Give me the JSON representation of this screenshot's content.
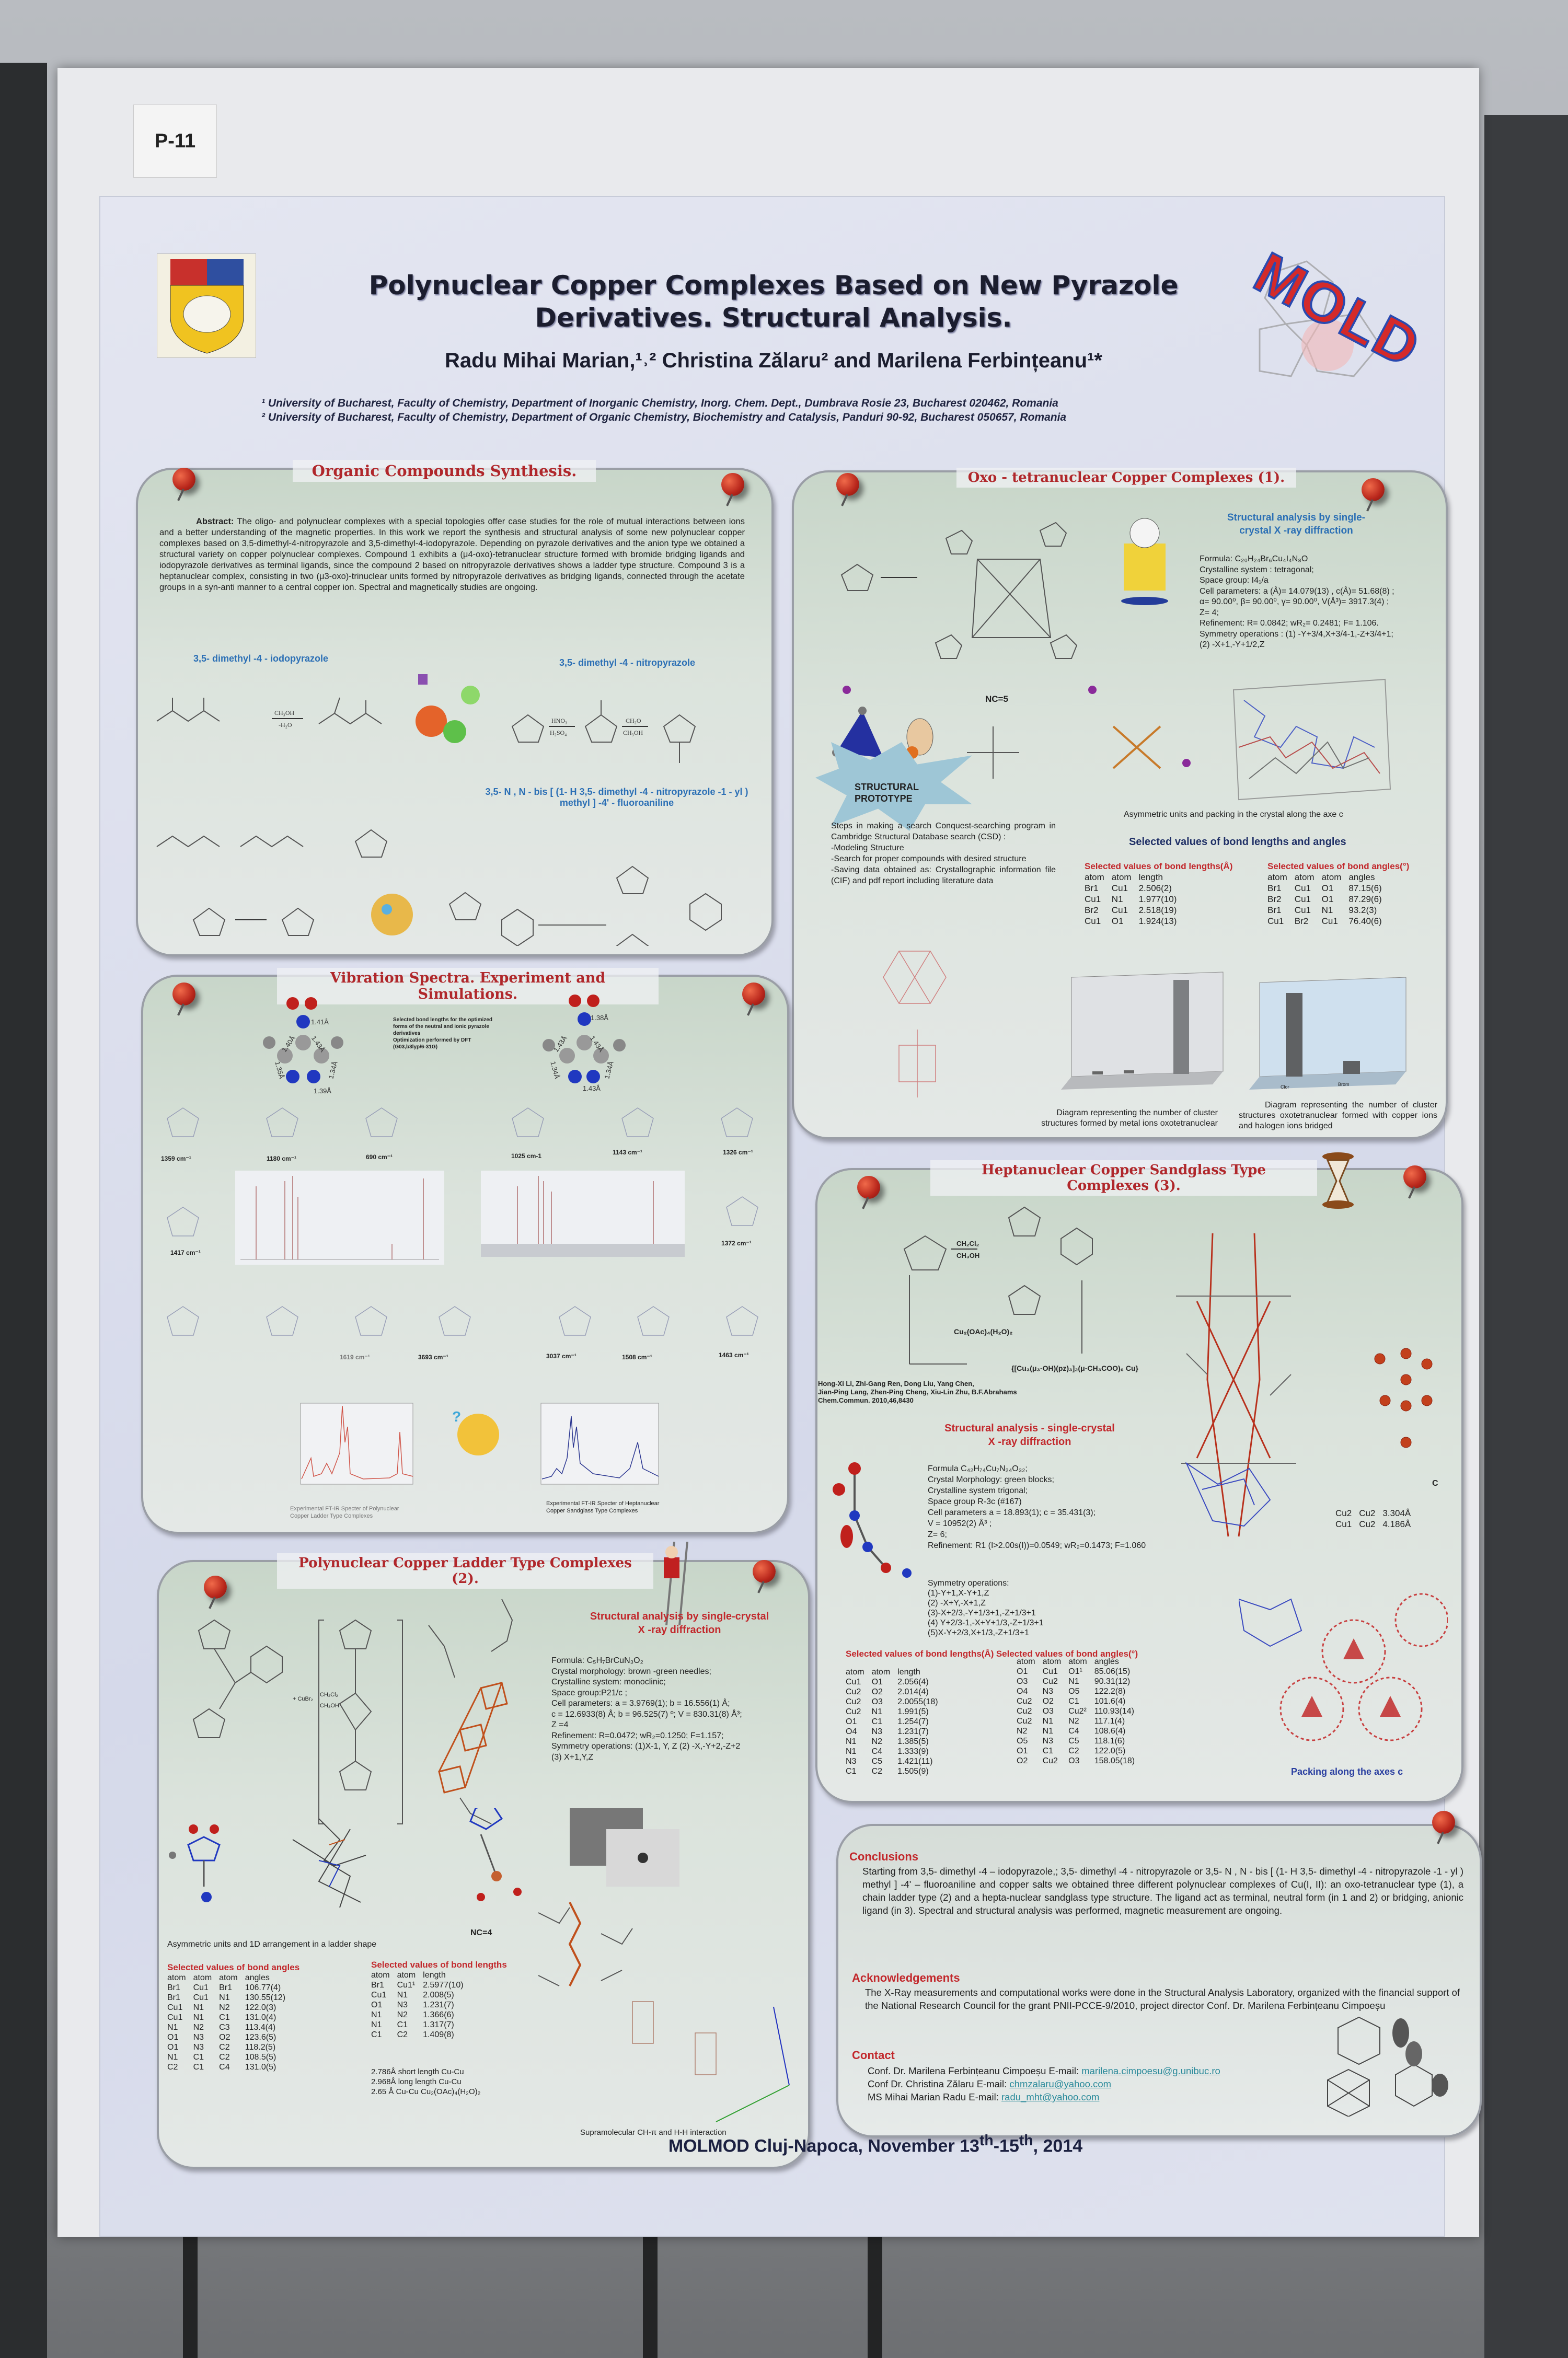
{
  "tag": "P-11",
  "header": {
    "title_line1": "Polynuclear Copper Complexes Based on New Pyrazole",
    "title_line2": "Derivatives. Structural Analysis.",
    "authors": "Radu Mihai Marian,¹˒² Christina Zălaru² and Marilena Ferbințeanu¹*",
    "affiliation1": "¹ University of Bucharest, Faculty of Chemistry, Department of Inorganic Chemistry, Inorg. Chem. Dept., Dumbrava Rosie 23, Bucharest 020462, Romania",
    "affiliation2": "² University of Bucharest, Faculty of Chemistry, Department of Organic Chemistry, Biochemistry and Catalysis, Panduri 90-92, Bucharest 050657, Romania",
    "logo_text": "MOLD"
  },
  "organic": {
    "title": "Organic Compounds Synthesis.",
    "abstract_label": "Abstract:",
    "abstract": "The oligo- and polynuclear complexes with a special topologies offer case studies for the role of mutual interactions between ions and a better understanding of the magnetic properties. In this work we report the synthesis and structural analysis of some new polynuclear copper complexes based on 3,5-dimethyl-4-nitropyrazole and 3,5-dimethyl-4-iodopyrazole. Depending on pyrazole derivatives and the anion type we obtained a structural variety on copper polynuclear complexes. Compound 1 exhibits a (μ4-oxo)-tetranuclear structure formed with bromide bridging ligands and iodopyrazole derivatives as terminal ligands, since the compound 2 based on nitropyrazole derivatives shows a ladder type structure. Compound 3 is a heptanuclear complex, consisting in two (μ3-oxo)-trinuclear units formed by nitropyrazole derivatives as bridging ligands, connected through the acetate groups in a syn-anti manner to a central copper ion. Spectral and magnetically studies are ongoing.",
    "label_iodo": "3,5- dimethyl -4 - iodopyrazole",
    "label_nitro": "3,5- dimethyl -4 - nitropyrazole",
    "label_bis": "3,5- N , N - bis [ (1- H 3,5- dimethyl -4 - nitropyrazole -1 - yl ) methyl ] -4' - fluoroaniline",
    "reagents": [
      "CH₃OH",
      "-H₂O",
      "HNO₃",
      "H₂SO₄",
      "CH₂O",
      "CH₃OH"
    ]
  },
  "oxo": {
    "title": "Oxo - tetranuclear Copper Complexes (1).",
    "xray_heading": "Structural analysis by single-crystal X -ray diffraction",
    "crystal": [
      "Formula: C₂₀H₂₄Br₆Cu₄I₄N₈O",
      "Crystalline system : tetragonal;",
      "Space group: I4₁/a",
      "Cell parameters: a (Å)=  14.079(13) , c(Å)= 51.68(8) ;",
      "α= 90.00⁰, β= 90.00⁰, γ= 90.00⁰, V(Å³)= 3917.3(4) ;",
      "Z= 4;",
      "Refinement: R= 0.0842;  wR₂= 0.2481;  F= 1.106.",
      "Symmetry operations : (1)  -Y+3/4,X+3/4-1,-Z+3/4+1;",
      "(2)  -X+1,-Y+1/2,Z"
    ],
    "nc_label": "NC=5",
    "prototype": "STRUCTURAL PROTOTYPE",
    "steps": [
      "Steps in making a search Conquest-searching program in Cambridge Structural Database search (CSD) :",
      "-Modeling Structure",
      "-Search for proper compounds with desired structure",
      "-Saving data obtained as: Crystallographic information file (CIF) and pdf report including literature data"
    ],
    "packing_caption": "Asymmetric units and packing in the crystal along the axe c",
    "selected_heading": "Selected values of bond lengths and angles",
    "lengths_title": "Selected values of bond lengths(Å)",
    "lengths_header": [
      "atom",
      "atom",
      "length"
    ],
    "lengths": [
      [
        "Br1",
        "Cu1",
        "2.506(2)"
      ],
      [
        "Cu1",
        "N1",
        "1.977(10)"
      ],
      [
        "Br2",
        "Cu1",
        "2.518(19)"
      ],
      [
        "Cu1",
        "O1",
        "1.924(13)"
      ]
    ],
    "angles_title": "Selected values of bond angles(°)",
    "angles_header": [
      "atom",
      "atom",
      "atom",
      "angles"
    ],
    "angles": [
      [
        "Br1",
        "Cu1",
        "O1",
        "87.15(6)"
      ],
      [
        "Br2",
        "Cu1",
        "O1",
        "87.29(6)"
      ],
      [
        "Br1",
        "Cu1",
        "N1",
        "93.2(3)"
      ],
      [
        "Cu1",
        "Br2",
        "Cu1",
        "76.40(6)"
      ]
    ],
    "diagram_labels_right": [
      "Clor",
      "Brom"
    ],
    "diagram1_caption": "Diagram representing the number of cluster structures formed by metal ions oxotetranuclear",
    "diagram2_caption": "Diagram representing the number of cluster structures oxotetranuclear formed with copper ions and halogen ions bridged"
  },
  "vibration": {
    "title": "Vibration Spectra. Experiment and Simulations.",
    "note": [
      "Selected bond lengths for the optimized",
      "forms of the neutral and ionic pyrazole",
      "derivatives",
      "Optimization performed by DFT",
      "(G03,b3lyp/6-31G)"
    ],
    "bonds_left": [
      "1.41Å",
      "1.40Å",
      "1.43Å",
      "1.35Å",
      "1.34Å",
      "1.39Å"
    ],
    "bonds_right": [
      "1.38Å",
      "1.43Å",
      "1.43Å",
      "1.34Å",
      "1.34Å",
      "1.43Å"
    ],
    "freq_row1": [
      "1359 cm⁻¹",
      "1180 cm⁻¹",
      "690 cm⁻¹",
      "1025 cm-1",
      "1143 cm⁻¹",
      "1326 cm⁻¹"
    ],
    "freq_side": [
      "1417 cm⁻¹",
      "1372 cm⁻¹"
    ],
    "freq_row2": [
      "1619 cm⁻¹",
      "3693 cm⁻¹",
      "3037 cm⁻¹",
      "1508 cm⁻¹",
      "1463 cm⁻¹"
    ],
    "ir_caption_left": "Experimental FT-IR Specter of Polynuclear Copper Ladder Type Complexes",
    "ir_caption_right": "Experimental FT-IR Specter of Heptanuclear Copper Sandglass Type Complexes",
    "colors": {
      "ladder_ir": "#d0564a",
      "hepta_ir": "#2a3590"
    }
  },
  "hepta": {
    "title": "Heptanuclear Copper Sandglass Type Complexes (3).",
    "reagent_top": "CH₂Cl₂",
    "reagent_bottom": "CH₃OH",
    "copper_salt": "Cu₂(OAc)₄(H₂O)₂",
    "product": "{[Cu₃(μ₃-OH)(pz)₃]₂(μ-CH₃COO)₆ Cu}",
    "reference": [
      "Hong-Xi Li, Zhi-Gang Ren, Dong Liu, Yang Chen,",
      "Jian-Ping Lang, Zhen-Ping Cheng, Xiu-Lin Zhu, B.F.Abrahams",
      "Chem.Commun. 2010,46,8430"
    ],
    "xray_heading": [
      "Structural analysis - single-crystal",
      "X -ray diffraction"
    ],
    "crystal": [
      "Formula    C₄₂H₇₄Cu₇N₂₄O₃₂;",
      "Crystal Morphology: green blocks;",
      "Crystalline system   trigonal;",
      "Space group R-3c (#167)",
      "Cell parameters    a =  18.893(1);  c =  35.431(3);",
      "V = 10952(2) Å³ ;",
      "Z= 6;",
      "Refinement: R1 (I>2.00s(I))=0.0549; wR₂=0.1473; F=1.060"
    ],
    "symmetry": [
      "Symmetry operations:",
      "(1)-Y+1,X-Y+1,Z",
      "(2) -X+Y,-X+1,Z",
      "(3)-X+2/3,-Y+1/3+1,-Z+1/3+1",
      "(4) Y+2/3-1,-X+Y+1/3,-Z+1/3+1",
      "(5)X-Y+2/3,X+1/3,-Z+1/3+1"
    ],
    "cu_distances": [
      [
        "Cu2",
        "Cu2",
        "3.304Å"
      ],
      [
        "Cu1",
        "Cu2",
        "4.186Å"
      ]
    ],
    "axis_label": "C",
    "lengths_title": "Selected values of bond lengths(Å)",
    "lengths_header": [
      "atom",
      "atom",
      "length"
    ],
    "lengths": [
      [
        "Cu1",
        "O1",
        "2.056(4)"
      ],
      [
        "Cu2",
        "O2",
        "2.014(4)"
      ],
      [
        "Cu2",
        "O3",
        "2.0055(18)"
      ],
      [
        "Cu2",
        "N1",
        "1.991(5)"
      ],
      [
        "O1",
        "C1",
        "1.254(7)"
      ],
      [
        "O4",
        "N3",
        "1.231(7)"
      ],
      [
        "N1",
        "N2",
        "1.385(5)"
      ],
      [
        "N1",
        "C4",
        "1.333(9)"
      ],
      [
        "N3",
        "C5",
        "1.421(11)"
      ],
      [
        "C1",
        "C2",
        "1.505(9)"
      ]
    ],
    "angles_title": "Selected values of bond angles(°)",
    "angles_header": [
      "atom",
      "atom",
      "atom",
      "angles"
    ],
    "angles": [
      [
        "O1",
        "Cu1",
        "O1¹",
        "85.06(15)"
      ],
      [
        "O3",
        "Cu2",
        "N1",
        "90.31(12)"
      ],
      [
        "O4",
        "N3",
        "O5",
        "122.2(8)"
      ],
      [
        "Cu2",
        "O2",
        "C1",
        "101.6(4)"
      ],
      [
        "Cu2",
        "O3",
        "Cu2²",
        "110.93(14)"
      ],
      [
        "Cu2",
        "N1",
        "N2",
        "117.1(4)"
      ],
      [
        "N2",
        "N1",
        "C4",
        "108.6(4)"
      ],
      [
        "O5",
        "N3",
        "C5",
        "118.1(6)"
      ],
      [
        "O1",
        "C1",
        "C2",
        "122.0(5)"
      ],
      [
        "O2",
        "Cu2",
        "O3",
        "158.05(18)"
      ]
    ],
    "packing_caption": "Packing along the axes c"
  },
  "ladder": {
    "title": "Polynuclear Copper Ladder Type Complexes (2).",
    "reagents": [
      "+ CuBr₂",
      "CH₂Cl₂",
      "CH₃OH"
    ],
    "xray_heading": [
      "Structural analysis by single-crystal",
      "X -ray diffraction"
    ],
    "crystal": [
      "Formula: C₅H₇BrCuN₃O₂",
      "Crystal morphology: brown -green needles;",
      "Crystalline system:  monoclinic;",
      "Space group:P21/c ;",
      "Cell parameters:  a =   3.9769(1); b =  16.556(1) Å;",
      "c =  12.6933(8) Å; b =  96.525(7) º; V = 830.31(8) Å³;",
      "Z =4",
      "Refinement: R=0.0472; wR₂=0.1250; F=1.157;",
      "Symmetry operations:  (1)X-1,  Y,  Z    (2)  -X,-Y+2,-Z+2",
      "(3)  X+1,Y,Z"
    ],
    "asym_caption": "Asymmetric units and 1D arrangement in a ladder shape",
    "nc_label": "NC=4",
    "angles_title": "Selected values of bond angles",
    "angles_header": [
      "atom",
      "atom",
      "atom",
      "angles"
    ],
    "angles": [
      [
        "Br1",
        "Cu1",
        "Br1",
        "106.77(4)"
      ],
      [
        "Br1",
        "Cu1",
        "N1",
        "130.55(12)"
      ],
      [
        "Cu1",
        "N1",
        "N2",
        "122.0(3)"
      ],
      [
        "Cu1",
        "N1",
        "C1",
        "131.0(4)"
      ],
      [
        "N1",
        "N2",
        "C3",
        "113.4(4)"
      ],
      [
        "O1",
        "N3",
        "O2",
        "123.6(5)"
      ],
      [
        "O1",
        "N3",
        "C2",
        "118.2(5)"
      ],
      [
        "N1",
        "C1",
        "C2",
        "108.5(5)"
      ],
      [
        "C2",
        "C1",
        "C4",
        "131.0(5)"
      ]
    ],
    "lengths_title": "Selected values of bond lengths",
    "lengths_header": [
      "atom",
      "atom",
      "length"
    ],
    "lengths": [
      [
        "Br1",
        "Cu1¹",
        "2.5977(10)"
      ],
      [
        "Cu1",
        "N1",
        "2.008(5)"
      ],
      [
        "O1",
        "N3",
        "1.231(7)"
      ],
      [
        "N1",
        "N2",
        "1.366(6)"
      ],
      [
        "N1",
        "C1",
        "1.317(7)"
      ],
      [
        "C1",
        "C2",
        "1.409(8)"
      ]
    ],
    "cu_notes": [
      "2.786Å short length Cu-Cu",
      "2.968Å  long length Cu-Cu",
      "2.65 Å Cu-Cu Cu₂(OAc)₄(H₂O)₂"
    ],
    "supra_caption": "Supramolecular CH-π and H-H interaction"
  },
  "conclusions": {
    "heading": "Conclusions",
    "text": "Starting from 3,5- dimethyl -4 – iodopyrazole,; 3,5- dimethyl -4 - nitropyrazole  or 3,5- N , N - bis [ (1- H 3,5- dimethyl -4 - nitropyrazole -1 - yl ) methyl ] -4' – fluoroaniline and copper salts we obtained three different polynuclear complexes of Cu(I, II): an oxo-tetranuclear type (1), a chain ladder type (2) and a hepta-nuclear sandglass type structure. The ligand act as terminal, neutral form (in 1 and 2) or bridging, anionic ligand (in 3). Spectral and structural analysis was performed, magnetic measurement are ongoing.",
    "ack_heading": "Acknowledgements",
    "ack_text": "The X-Ray measurements and computational works were done in the Structural Analysis Laboratory, organized with the financial support of the National Research Council for the grant PNII-PCCE-9/2010, project director Conf. Dr. Marilena Ferbințeanu Cimpoeșu",
    "contact_heading": "Contact",
    "contacts": [
      {
        "name": "Conf. Dr. Marilena Ferbințeanu Cimpoeșu E-mail: ",
        "email": "marilena.cimpoesu@g.unibuc.ro"
      },
      {
        "name": "Conf Dr. Christina Zălaru E-mail: ",
        "email": "chmzalaru@yahoo.com"
      },
      {
        "name": "MS Mihai Marian Radu E-mail: ",
        "email": "radu_mht@yahoo.com"
      }
    ]
  },
  "footer": {
    "text": "MOLMOD Cluj-Napoca, November 13",
    "sup1": "th",
    "dash": "-15",
    "sup2": "th",
    "year": ", 2014"
  }
}
